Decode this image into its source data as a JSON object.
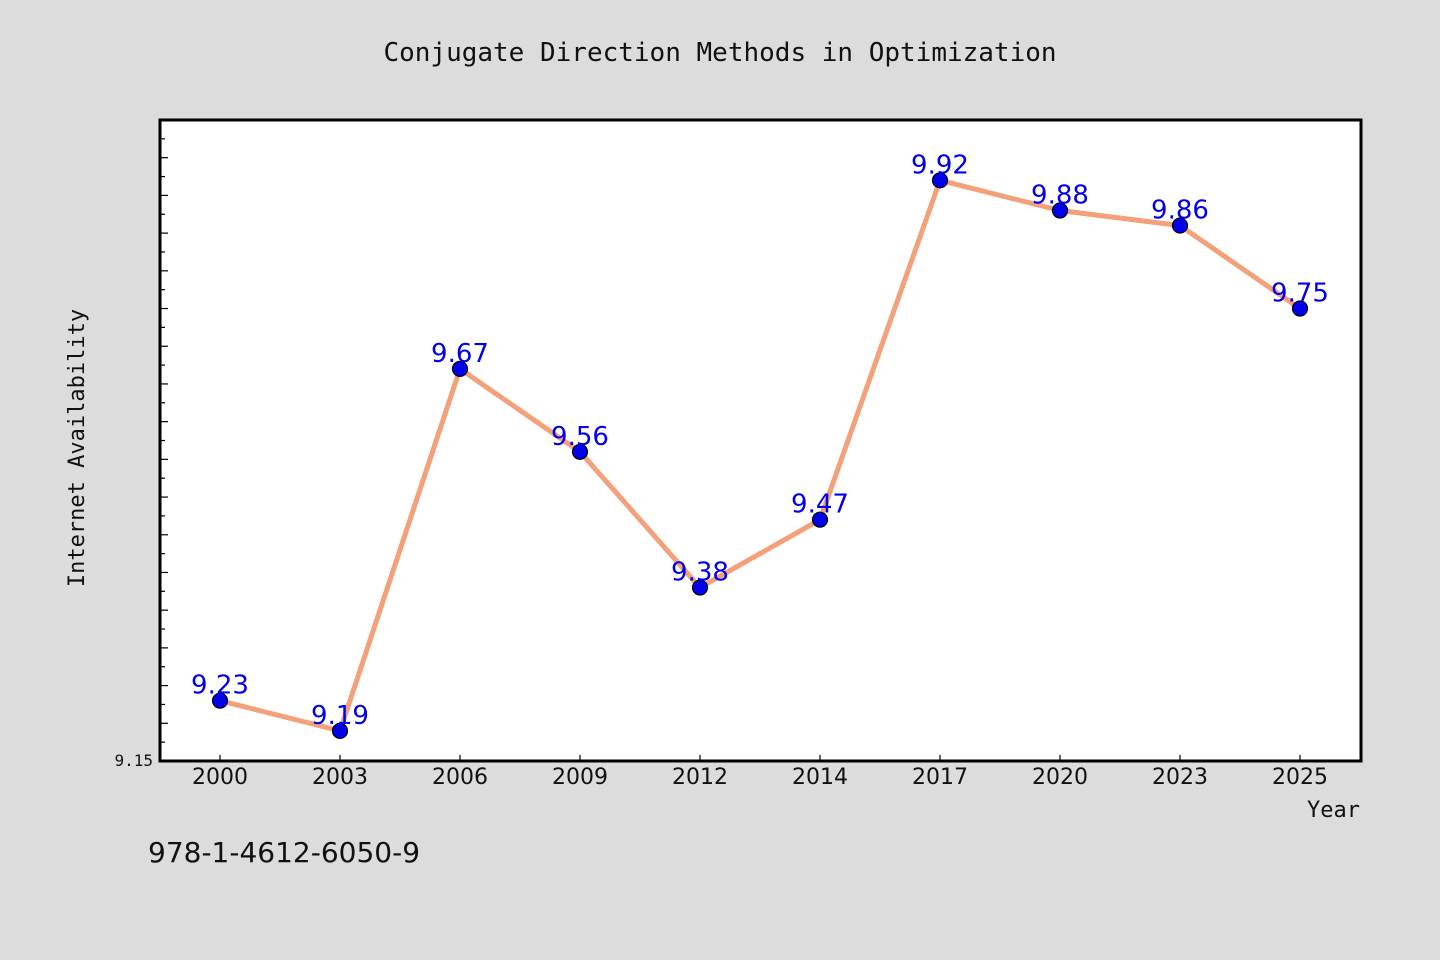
{
  "chart_data": {
    "type": "line",
    "title": "Conjugate Direction Methods in Optimization",
    "xlabel": "Year",
    "ylabel": "Internet Availability",
    "categories": [
      "2000",
      "2003",
      "2006",
      "2009",
      "2012",
      "2014",
      "2017",
      "2020",
      "2023",
      "2025"
    ],
    "series": [
      {
        "values": [
          9.23,
          9.19,
          9.67,
          9.56,
          9.38,
          9.47,
          9.92,
          9.88,
          9.86,
          9.75
        ],
        "labels": [
          "9.23",
          "9.19",
          "9.67",
          "9.56",
          "9.38",
          "9.47",
          "9.92",
          "9.88",
          "9.86",
          "9.75"
        ],
        "line_color": "#f4a07a",
        "marker_color": "#0000ee"
      }
    ],
    "ylim": [
      9.15,
      10.0
    ],
    "y_tick_label": "9.15",
    "grid": false,
    "legend": "none"
  },
  "footer": {
    "isbn": "978-1-4612-6050-9"
  },
  "colors": {
    "background": "#dcdcdc",
    "plot_background": "#ffffff",
    "axis": "#000000"
  }
}
